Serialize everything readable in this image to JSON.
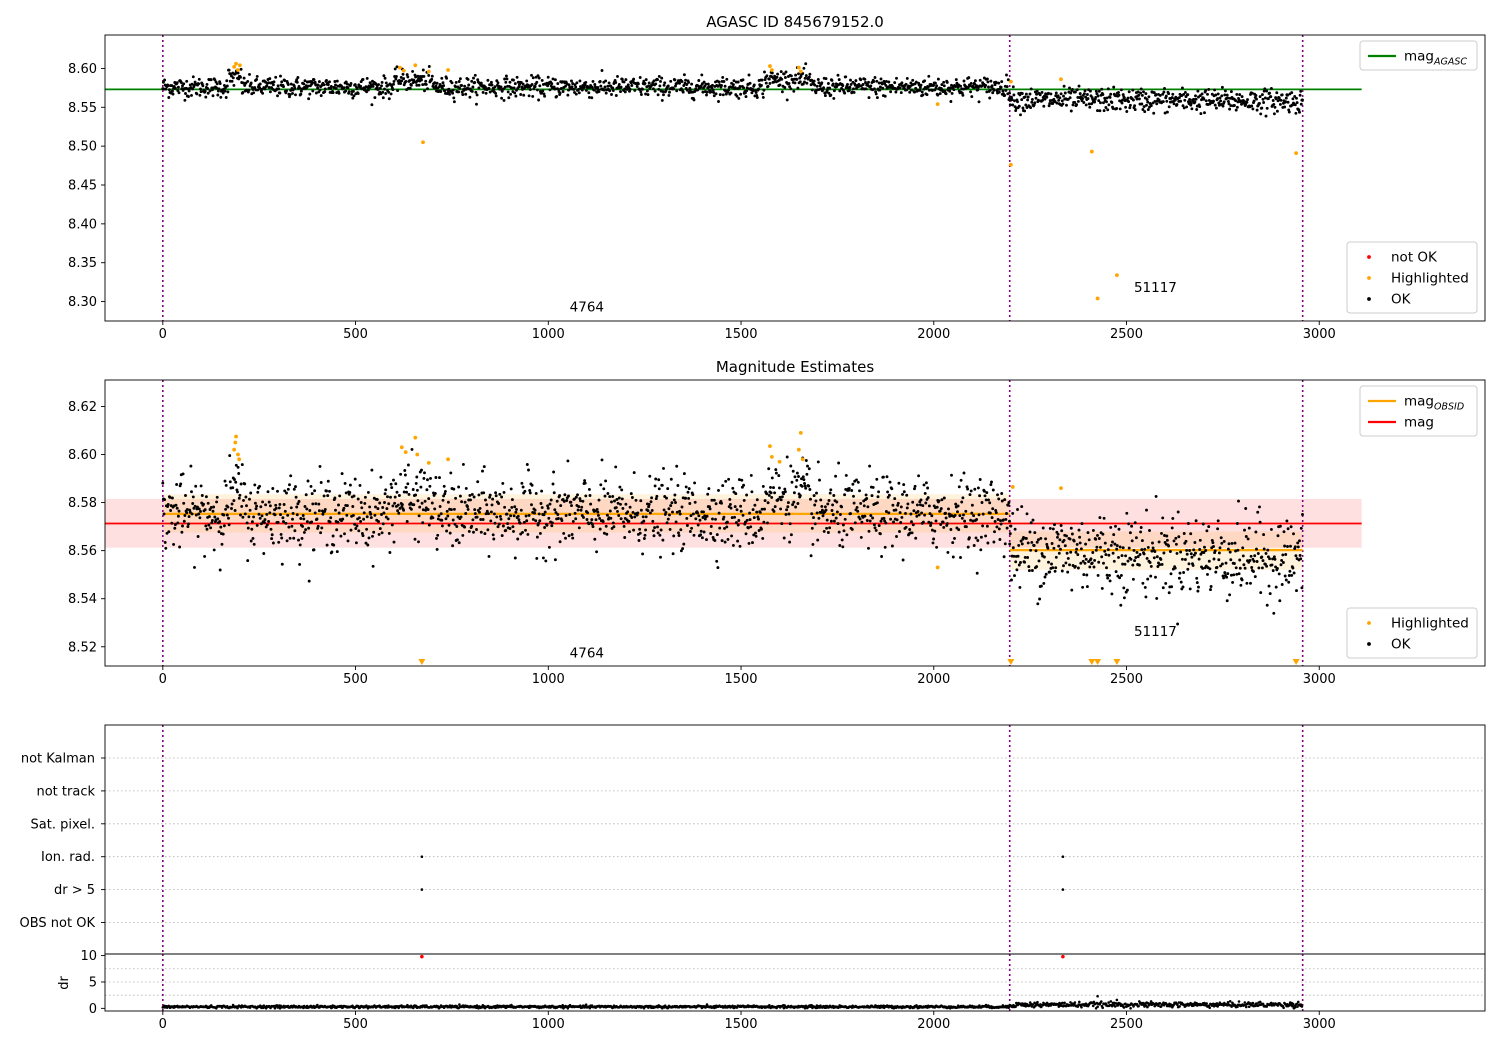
{
  "chart_data": [
    {
      "type": "scatter",
      "title": "AGASC ID 845679152.0",
      "xlim": [
        -150,
        3430
      ],
      "ylim": [
        8.275,
        8.643
      ],
      "xticks": [
        0,
        500,
        1000,
        1500,
        2000,
        2500,
        3000
      ],
      "yticks": [
        8.3,
        8.35,
        8.4,
        8.45,
        8.5,
        8.55,
        8.6
      ],
      "obsid_boundaries": [
        0,
        2197,
        2957
      ],
      "obsid_labels": [
        {
          "text": "4764",
          "x": 1100,
          "y": 8.287
        },
        {
          "text": "51117",
          "x": 2575,
          "y": 8.312
        }
      ],
      "hlines": [
        {
          "name": "mag_AGASC",
          "y": 8.573,
          "x": [
            -150,
            3110
          ],
          "color": "#008000"
        }
      ],
      "segments": [
        {
          "x": [
            0,
            2197
          ],
          "mean": 8.576,
          "std": 0.0065,
          "trend": 0.0
        },
        {
          "x": [
            2197,
            2957
          ],
          "mean": 8.56,
          "std": 0.0075,
          "trend": -0.002
        }
      ],
      "bumps": [
        {
          "x": [
            170,
            205
          ],
          "dy": 0.02
        },
        {
          "x": [
            600,
            700
          ],
          "dy": 0.014
        },
        {
          "x": [
            1560,
            1680
          ],
          "dy": 0.016
        }
      ],
      "highlighted": [
        {
          "x": 185,
          "y": 8.602
        },
        {
          "x": 190,
          "y": 8.606
        },
        {
          "x": 195,
          "y": 8.598
        },
        {
          "x": 200,
          "y": 8.604
        },
        {
          "x": 615,
          "y": 8.601
        },
        {
          "x": 625,
          "y": 8.597
        },
        {
          "x": 655,
          "y": 8.604
        },
        {
          "x": 675,
          "y": 8.505
        },
        {
          "x": 690,
          "y": 8.596
        },
        {
          "x": 740,
          "y": 8.598
        },
        {
          "x": 1575,
          "y": 8.603
        },
        {
          "x": 1580,
          "y": 8.598
        },
        {
          "x": 1650,
          "y": 8.601
        },
        {
          "x": 1655,
          "y": 8.596
        },
        {
          "x": 2010,
          "y": 8.554
        },
        {
          "x": 2200,
          "y": 8.476
        },
        {
          "x": 2200,
          "y": 8.583
        },
        {
          "x": 2330,
          "y": 8.586
        },
        {
          "x": 2410,
          "y": 8.493
        },
        {
          "x": 2425,
          "y": 8.304
        },
        {
          "x": 2475,
          "y": 8.334
        },
        {
          "x": 2940,
          "y": 8.491
        }
      ],
      "legends": [
        {
          "position": "upper-right",
          "entries": [
            {
              "label": "mag",
              "sub": "AGASC",
              "kind": "line",
              "color": "#008000"
            }
          ]
        },
        {
          "position": "lower-right",
          "entries": [
            {
              "label": "not OK",
              "kind": "dot",
              "color": "#ff0000"
            },
            {
              "label": "Highlighted",
              "kind": "dot",
              "color": "#ffa500"
            },
            {
              "label": "OK",
              "kind": "dot",
              "color": "#000000"
            }
          ]
        }
      ]
    },
    {
      "type": "scatter",
      "title": "Magnitude Estimates",
      "xlim": [
        -150,
        3430
      ],
      "ylim": [
        8.512,
        8.631
      ],
      "xticks": [
        0,
        500,
        1000,
        1500,
        2000,
        2500,
        3000
      ],
      "yticks": [
        8.52,
        8.54,
        8.56,
        8.58,
        8.6,
        8.62
      ],
      "obsid_boundaries": [
        0,
        2197,
        2957
      ],
      "obsid_labels": [
        {
          "text": "4764",
          "x": 1100,
          "y": 8.5155
        },
        {
          "text": "51117",
          "x": 2575,
          "y": 8.5245
        }
      ],
      "hlines": [
        {
          "name": "mag",
          "y": 8.5713,
          "x": [
            -150,
            3110
          ],
          "color": "#ff0000",
          "band": [
            8.5612,
            8.5815
          ]
        }
      ],
      "obsid_means": [
        {
          "x": [
            0,
            2197
          ],
          "y": 8.5753,
          "band": [
            8.5675,
            8.5835
          ]
        },
        {
          "x": [
            2197,
            2957
          ],
          "y": 8.5602,
          "band": [
            8.552,
            8.568
          ]
        }
      ],
      "segments": [
        {
          "x": [
            0,
            2197
          ],
          "mean": 8.5755,
          "std": 0.0075,
          "trend": 0.0
        },
        {
          "x": [
            2197,
            2957
          ],
          "mean": 8.5605,
          "std": 0.0085,
          "trend": -0.004
        }
      ],
      "bumps": [
        {
          "x": [
            170,
            210
          ],
          "dy": 0.012
        },
        {
          "x": [
            590,
            700
          ],
          "dy": 0.01
        },
        {
          "x": [
            1560,
            1680
          ],
          "dy": 0.012
        }
      ],
      "highlighted": [
        {
          "x": 185,
          "y": 8.602
        },
        {
          "x": 188,
          "y": 8.605
        },
        {
          "x": 190,
          "y": 8.6075
        },
        {
          "x": 195,
          "y": 8.6
        },
        {
          "x": 198,
          "y": 8.598
        },
        {
          "x": 620,
          "y": 8.603
        },
        {
          "x": 630,
          "y": 8.601
        },
        {
          "x": 655,
          "y": 8.607
        },
        {
          "x": 660,
          "y": 8.6
        },
        {
          "x": 690,
          "y": 8.5965
        },
        {
          "x": 740,
          "y": 8.598
        },
        {
          "x": 1575,
          "y": 8.6035
        },
        {
          "x": 1580,
          "y": 8.599
        },
        {
          "x": 1600,
          "y": 8.597
        },
        {
          "x": 1650,
          "y": 8.602
        },
        {
          "x": 1655,
          "y": 8.609
        },
        {
          "x": 1660,
          "y": 8.598
        },
        {
          "x": 2010,
          "y": 8.553
        },
        {
          "x": 2205,
          "y": 8.5865
        },
        {
          "x": 2330,
          "y": 8.586
        }
      ],
      "offscale_markers": [
        672,
        2200,
        2410,
        2425,
        2475,
        2940
      ],
      "legends": [
        {
          "position": "upper-right",
          "entries": [
            {
              "label": "mag",
              "sub": "OBSID",
              "kind": "line",
              "color": "#ffa500"
            },
            {
              "label": "mag",
              "kind": "line",
              "color": "#ff0000"
            }
          ]
        },
        {
          "position": "lower-right",
          "entries": [
            {
              "label": "Highlighted",
              "kind": "dot",
              "color": "#ffa500"
            },
            {
              "label": "OK",
              "kind": "dot",
              "color": "#000000"
            }
          ]
        }
      ]
    },
    {
      "type": "scatter",
      "title": "",
      "xlim": [
        -150,
        3430
      ],
      "categories": [
        "not Kalman",
        "not track",
        "Sat. pixel.",
        "Ion. rad.",
        "dr > 5",
        "OBS not OK"
      ],
      "obsid_boundaries": [
        0,
        2197,
        2957
      ],
      "flags": [
        {
          "category": "Ion. rad.",
          "x": [
            672,
            2335
          ]
        },
        {
          "category": "dr > 5",
          "x": [
            672,
            2335
          ]
        }
      ]
    },
    {
      "type": "scatter",
      "title": "",
      "ylabel": "dr",
      "xlim": [
        -150,
        3430
      ],
      "ylim": [
        -0.5,
        10.3
      ],
      "yticks": [
        0,
        5,
        10
      ],
      "xticks": [
        0,
        500,
        1000,
        1500,
        2000,
        2500,
        3000
      ],
      "obsid_boundaries": [
        0,
        2197,
        2957
      ],
      "segments": [
        {
          "x": [
            0,
            2197
          ],
          "mean": 0.3,
          "std": 0.12
        },
        {
          "x": [
            2197,
            2957
          ],
          "mean": 0.7,
          "std": 0.25
        }
      ],
      "not_ok": [
        {
          "x": 672,
          "y": 9.8
        },
        {
          "x": 2335,
          "y": 9.8
        }
      ],
      "outliers": [
        {
          "x": 2425,
          "y": 2.3
        },
        {
          "x": 2475,
          "y": 1.6
        }
      ]
    }
  ]
}
